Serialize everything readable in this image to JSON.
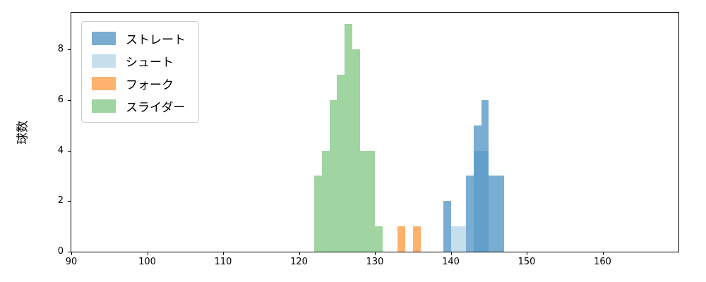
{
  "chart_data": {
    "type": "bar",
    "subtype": "histogram",
    "title": "",
    "xlabel": "",
    "ylabel": "球数",
    "xlim": [
      90,
      170
    ],
    "ylim": [
      0,
      9.45
    ],
    "xticks": [
      90,
      100,
      110,
      120,
      130,
      140,
      150,
      160
    ],
    "yticks": [
      0,
      2,
      4,
      6,
      8
    ],
    "bin_width": 1,
    "grid": false,
    "legend_position": "upper-left",
    "series": [
      {
        "id": "straight",
        "name": "ストレート",
        "color": "#1f77b4",
        "alpha": 0.6,
        "bins": [
          [
            139,
            2
          ],
          [
            142,
            3
          ],
          [
            143,
            5
          ],
          [
            144,
            6
          ],
          [
            145,
            3
          ],
          [
            146,
            3
          ]
        ]
      },
      {
        "id": "shoot",
        "name": "シュート",
        "color": "#9ecae1",
        "alpha": 0.6,
        "bins": [
          [
            140,
            1
          ],
          [
            141,
            1
          ],
          [
            143,
            4
          ],
          [
            144,
            4
          ]
        ]
      },
      {
        "id": "fork",
        "name": "フォーク",
        "color": "#ff7f0e",
        "alpha": 0.6,
        "bins": [
          [
            133,
            1
          ],
          [
            135,
            1
          ]
        ]
      },
      {
        "id": "slider",
        "name": "スライダー",
        "color": "#2ca02c",
        "alpha": 0.45,
        "bins": [
          [
            122,
            3
          ],
          [
            123,
            4
          ],
          [
            124,
            6
          ],
          [
            125,
            7
          ],
          [
            126,
            9
          ],
          [
            127,
            8
          ],
          [
            128,
            4
          ],
          [
            129,
            4
          ],
          [
            130,
            1
          ]
        ]
      }
    ],
    "draw_order": [
      "slider",
      "fork",
      "shoot",
      "straight"
    ]
  }
}
